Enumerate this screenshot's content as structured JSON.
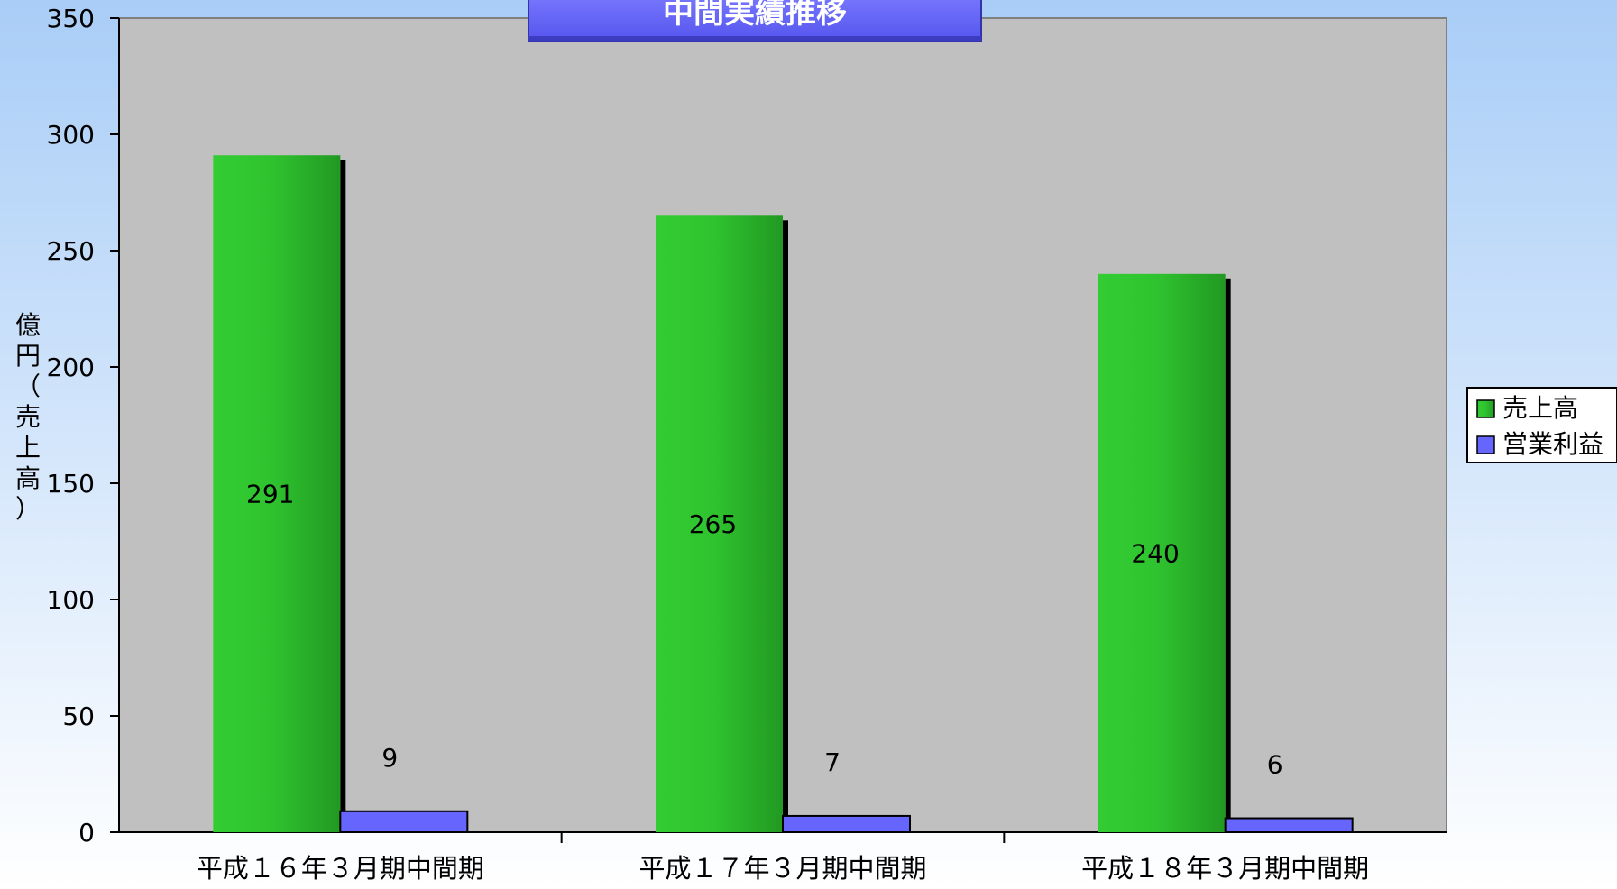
{
  "chart_data": {
    "type": "bar",
    "title": "中間実績推移",
    "ylabel": "億円（売上高）",
    "ylim": [
      0,
      350
    ],
    "yticks": [
      0,
      50,
      100,
      150,
      200,
      250,
      300,
      350
    ],
    "categories": [
      "平成１６年３月期中間期",
      "平成１７年３月期中間期",
      "平成１８年３月期中間期"
    ],
    "series": [
      {
        "name": "売上高",
        "values": [
          291,
          265,
          240
        ],
        "color": "#2fc42f"
      },
      {
        "name": "営業利益",
        "values": [
          9,
          7,
          6
        ],
        "color": "#6666ff"
      }
    ],
    "legend": "right",
    "grid": false,
    "background": "#c0c0c0"
  }
}
